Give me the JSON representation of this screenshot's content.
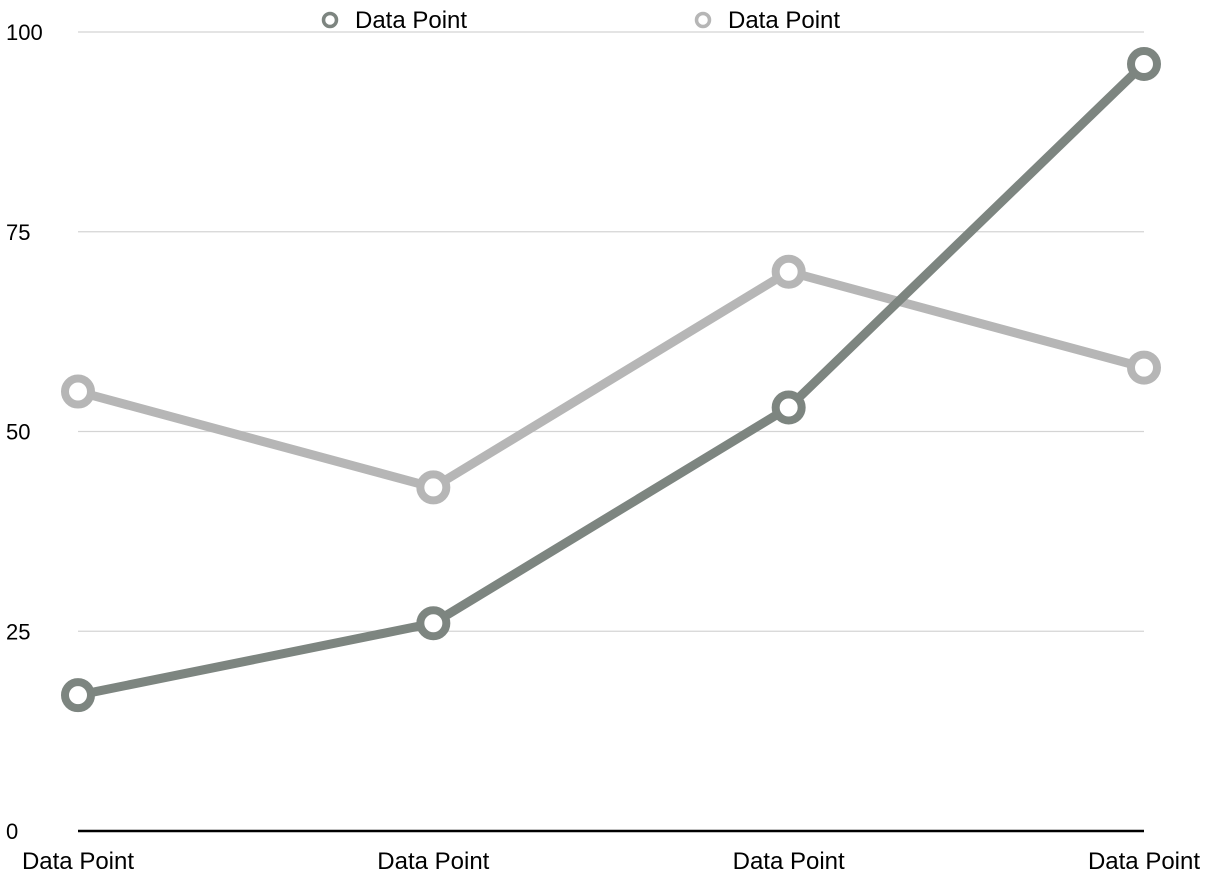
{
  "chart_data": {
    "type": "line",
    "categories": [
      "Data Point",
      "Data Point",
      "Data Point",
      "Data Point"
    ],
    "series": [
      {
        "name": "Data Point",
        "color": "#7d8580",
        "values": [
          17,
          26,
          53,
          96
        ]
      },
      {
        "name": "Data Point",
        "color": "#b6b6b6",
        "values": [
          55,
          43,
          70,
          58
        ]
      }
    ],
    "y_ticks": [
      "0",
      "25",
      "50",
      "75",
      "100"
    ],
    "ylim": [
      0,
      100
    ],
    "grid": true,
    "legend_position": "top"
  }
}
